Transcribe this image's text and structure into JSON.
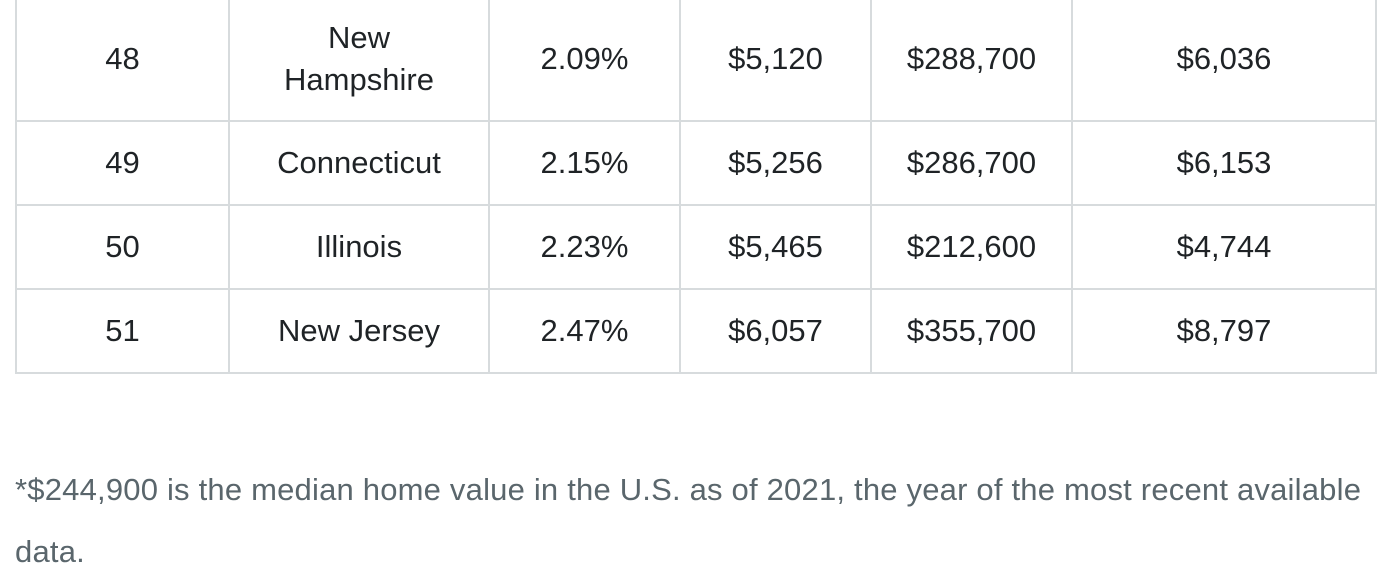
{
  "table": {
    "rows": [
      {
        "rank": "48",
        "state": "New Hampshire",
        "rate": "2.09%",
        "tax": "$5,120",
        "home_value": "$288,700",
        "state_tax": "$6,036"
      },
      {
        "rank": "49",
        "state": "Connecticut",
        "rate": "2.15%",
        "tax": "$5,256",
        "home_value": "$286,700",
        "state_tax": "$6,153"
      },
      {
        "rank": "50",
        "state": "Illinois",
        "rate": "2.23%",
        "tax": "$5,465",
        "home_value": "$212,600",
        "state_tax": "$4,744"
      },
      {
        "rank": "51",
        "state": "New Jersey",
        "rate": "2.47%",
        "tax": "$6,057",
        "home_value": "$355,700",
        "state_tax": "$8,797"
      }
    ]
  },
  "footnote": "*$244,900 is the median home value in the U.S. as of 2021, the year of the most recent available data."
}
